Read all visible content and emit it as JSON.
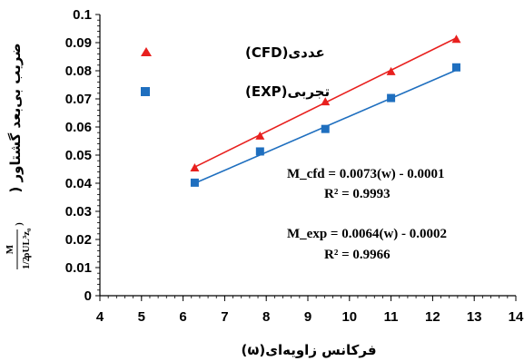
{
  "chart_data": {
    "type": "scatter",
    "xlabel": "فرکانس زاویه‌ای(ω)",
    "ylabel": "ضریب بی‌بعد گشتاور (",
    "ylabel_fraction": {
      "numerator": "M",
      "coef": "1/2",
      "denominator_rest": "ρUL³z₀",
      "close": ")"
    },
    "xlim": [
      4,
      14
    ],
    "ylim": [
      0,
      0.1
    ],
    "x_ticks": [
      "4",
      "5",
      "6",
      "7",
      "8",
      "9",
      "10",
      "11",
      "12",
      "13",
      "14"
    ],
    "y_ticks": [
      "0",
      "0.01",
      "0.02",
      "0.03",
      "0.04",
      "0.05",
      "0.06",
      "0.07",
      "0.08",
      "0.09",
      "0.1"
    ],
    "grid": false,
    "legend_position": "top-left",
    "series": [
      {
        "name": "عددی(CFD)",
        "marker": "triangle",
        "color": "#e8201e",
        "x": [
          6.28,
          7.85,
          9.42,
          11.0,
          12.57
        ],
        "y": [
          0.0455,
          0.0568,
          0.069,
          0.0797,
          0.0912
        ],
        "trendline": {
          "slope": 0.0073,
          "intercept": -0.0001
        }
      },
      {
        "name": "تجربی(EXP)",
        "marker": "square",
        "color": "#1f6fbf",
        "x": [
          6.28,
          7.85,
          9.42,
          11.0,
          12.57
        ],
        "y": [
          0.0402,
          0.0513,
          0.0593,
          0.0703,
          0.0812
        ],
        "trendline": {
          "slope": 0.0064,
          "intercept": -0.0002
        }
      }
    ],
    "annotations": [
      "M_cfd = 0.0073(w) - 0.0001",
      "R² = 0.9993",
      "M_exp = 0.0064(w) - 0.0002",
      "R² = 0.9966"
    ]
  }
}
